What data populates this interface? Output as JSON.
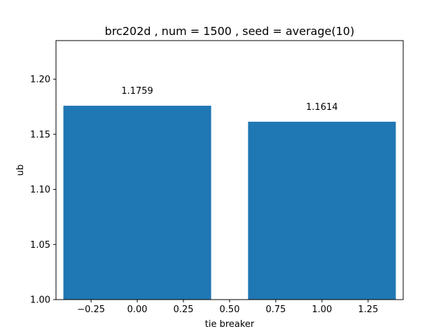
{
  "chart_data": {
    "type": "bar",
    "title": "brc202d , num = 1500 , seed = average(10)",
    "xlabel": "tie breaker",
    "ylabel": "ub",
    "x": [
      0,
      1
    ],
    "values": [
      1.1759,
      1.1614
    ],
    "data_labels": [
      "1.1759",
      "1.1614"
    ],
    "bar_width": 0.8,
    "xlim": [
      -0.44,
      1.44
    ],
    "ylim": [
      1.0,
      1.235
    ],
    "xticks": [
      -0.25,
      0.0,
      0.25,
      0.5,
      0.75,
      1.0,
      1.25
    ],
    "xtick_labels": [
      "−0.25",
      "0.00",
      "0.25",
      "0.50",
      "0.75",
      "1.00",
      "1.25"
    ],
    "yticks": [
      1.0,
      1.05,
      1.1,
      1.15,
      1.2
    ],
    "ytick_labels": [
      "1.00",
      "1.05",
      "1.10",
      "1.15",
      "1.20"
    ],
    "grid": false,
    "colors": {
      "bar": "#1f77b4",
      "axis": "#000000"
    }
  }
}
